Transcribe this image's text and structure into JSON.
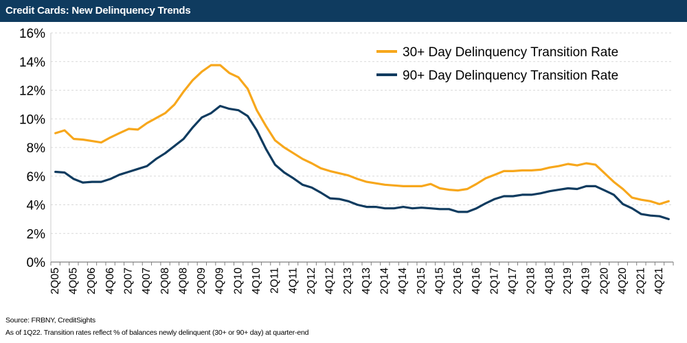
{
  "header": {
    "title": "Credit Cards: New Delinquency Trends"
  },
  "footer": {
    "source": "Source: FRBNY, CreditSights",
    "note": "As of 1Q22. Transition rates reflect % of balances newly delinquent (30+ or 90+ day) at quarter-end"
  },
  "colors": {
    "series_30": "#f7a71c",
    "series_90": "#0f3b5f",
    "title_bar": "#0f3b5f",
    "grid": "#d9d9d9"
  },
  "chart_data": {
    "type": "line",
    "title": "Credit Cards: New Delinquency Trends",
    "xlabel": "",
    "ylabel": "",
    "ylim": [
      0,
      16
    ],
    "yticks": [
      "0%",
      "2%",
      "4%",
      "6%",
      "8%",
      "10%",
      "12%",
      "14%",
      "16%"
    ],
    "grid": true,
    "legend_position": "top-right",
    "x_tick_labels": [
      "2Q05",
      "4Q05",
      "2Q06",
      "4Q06",
      "2Q07",
      "4Q07",
      "2Q08",
      "4Q08",
      "2Q09",
      "4Q09",
      "2Q10",
      "4Q10",
      "2Q11",
      "4Q11",
      "2Q12",
      "4Q12",
      "2Q13",
      "4Q13",
      "2Q14",
      "4Q14",
      "2Q15",
      "4Q15",
      "2Q16",
      "4Q16",
      "2Q17",
      "4Q17",
      "2Q18",
      "4Q18",
      "2Q19",
      "4Q19",
      "2Q20",
      "4Q20",
      "2Q21",
      "4Q21"
    ],
    "x": [
      "2Q05",
      "3Q05",
      "4Q05",
      "1Q06",
      "2Q06",
      "3Q06",
      "4Q06",
      "1Q07",
      "2Q07",
      "3Q07",
      "4Q07",
      "1Q08",
      "2Q08",
      "3Q08",
      "4Q08",
      "1Q09",
      "2Q09",
      "3Q09",
      "4Q09",
      "1Q10",
      "2Q10",
      "3Q10",
      "4Q10",
      "1Q11",
      "2Q11",
      "3Q11",
      "4Q11",
      "1Q12",
      "2Q12",
      "3Q12",
      "4Q12",
      "1Q13",
      "2Q13",
      "3Q13",
      "4Q13",
      "1Q14",
      "2Q14",
      "3Q14",
      "4Q14",
      "1Q15",
      "2Q15",
      "3Q15",
      "4Q15",
      "1Q16",
      "2Q16",
      "3Q16",
      "4Q16",
      "1Q17",
      "2Q17",
      "3Q17",
      "4Q17",
      "1Q18",
      "2Q18",
      "3Q18",
      "4Q18",
      "1Q19",
      "2Q19",
      "3Q19",
      "4Q19",
      "1Q20",
      "2Q20",
      "3Q20",
      "4Q20",
      "1Q21",
      "2Q21",
      "3Q21",
      "4Q21",
      "1Q22"
    ],
    "series": [
      {
        "name": "30+ Day Delinquency Transition Rate",
        "color": "#f7a71c",
        "values": [
          9.0,
          9.2,
          8.6,
          8.55,
          8.45,
          8.35,
          8.7,
          9.0,
          9.3,
          9.25,
          9.7,
          10.05,
          10.4,
          11.0,
          11.9,
          12.7,
          13.3,
          13.75,
          13.75,
          13.2,
          12.9,
          12.1,
          10.6,
          9.5,
          8.5,
          8.0,
          7.6,
          7.2,
          6.9,
          6.55,
          6.35,
          6.2,
          6.05,
          5.8,
          5.6,
          5.5,
          5.4,
          5.35,
          5.3,
          5.3,
          5.3,
          5.45,
          5.15,
          5.05,
          5.0,
          5.1,
          5.45,
          5.85,
          6.1,
          6.35,
          6.35,
          6.4,
          6.4,
          6.45,
          6.6,
          6.7,
          6.85,
          6.75,
          6.9,
          6.8,
          6.2,
          5.6,
          5.1,
          4.5,
          4.35,
          4.25,
          4.05,
          4.25
        ]
      },
      {
        "name": "90+ Day Delinquency Transition Rate",
        "color": "#0f3b5f",
        "values": [
          6.3,
          6.25,
          5.8,
          5.55,
          5.6,
          5.6,
          5.8,
          6.1,
          6.3,
          6.5,
          6.7,
          7.2,
          7.6,
          8.1,
          8.6,
          9.4,
          10.1,
          10.4,
          10.9,
          10.7,
          10.6,
          10.2,
          9.2,
          7.9,
          6.8,
          6.25,
          5.85,
          5.4,
          5.2,
          4.85,
          4.45,
          4.4,
          4.25,
          4.0,
          3.85,
          3.85,
          3.75,
          3.75,
          3.85,
          3.75,
          3.8,
          3.75,
          3.7,
          3.7,
          3.5,
          3.5,
          3.75,
          4.1,
          4.4,
          4.6,
          4.6,
          4.7,
          4.7,
          4.8,
          4.95,
          5.05,
          5.15,
          5.1,
          5.3,
          5.3,
          5.0,
          4.7,
          4.05,
          3.75,
          3.35,
          3.25,
          3.2,
          3.0
        ]
      }
    ]
  }
}
